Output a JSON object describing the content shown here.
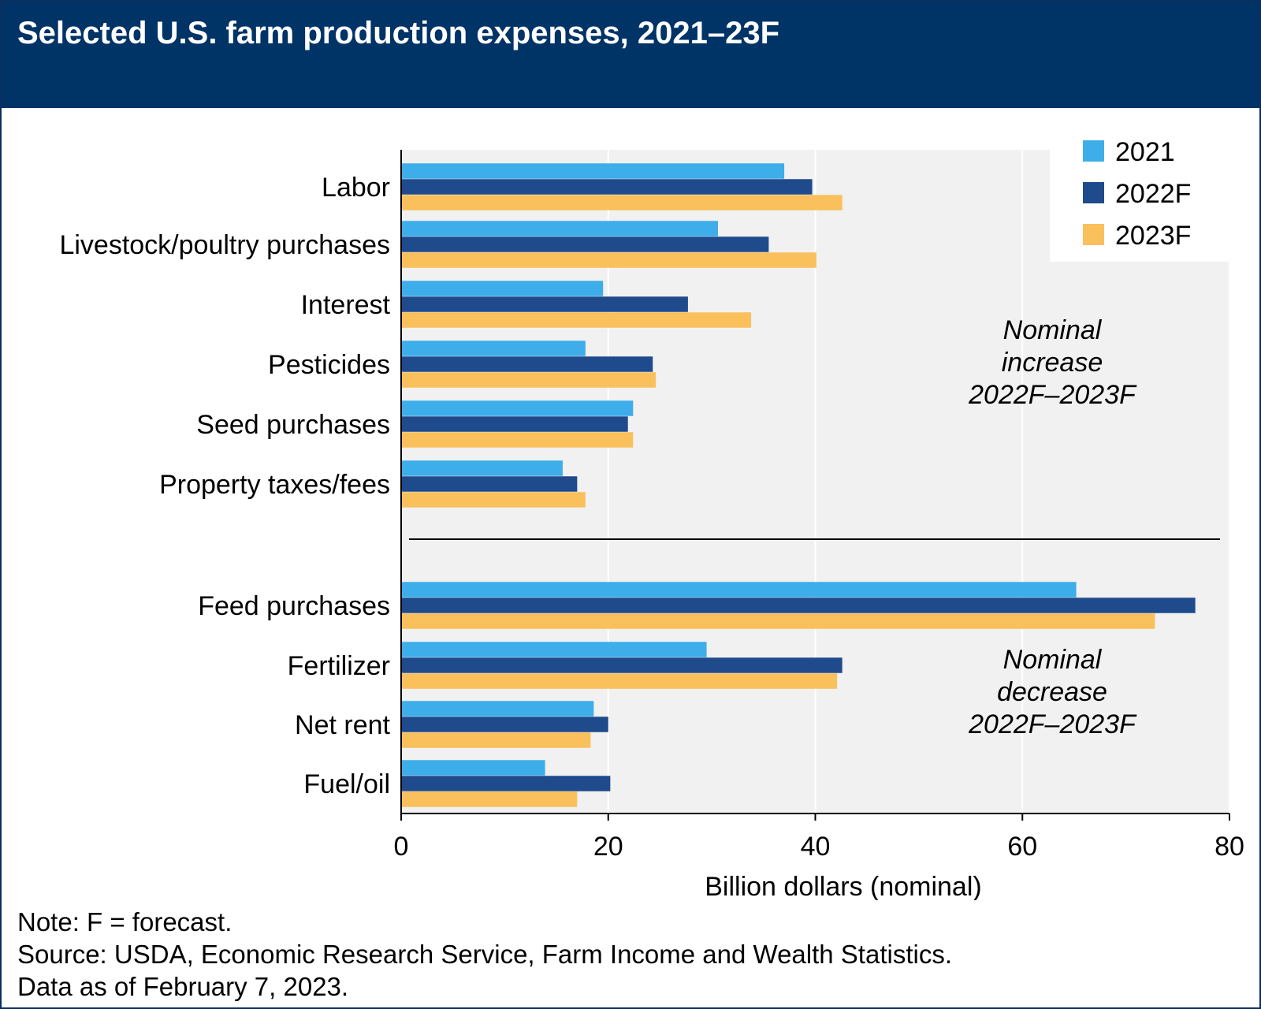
{
  "title": "Selected U.S. farm production expenses, 2021–23F",
  "colors": {
    "header_bg": "#003366",
    "series_2021": "#3daee9",
    "series_2022F": "#1f4a8c",
    "series_2023F": "#f9c05c",
    "plot_bg": "#f1f1f1"
  },
  "chart_data": {
    "type": "bar",
    "orientation": "horizontal",
    "categories": [
      "Labor",
      "Livestock/poultry purchases",
      "Interest",
      "Pesticides",
      "Seed purchases",
      "Property taxes/fees",
      "Feed purchases",
      "Fertilizer",
      "Net rent",
      "Fuel/oil"
    ],
    "series": [
      {
        "name": "2021",
        "values": [
          37.0,
          30.6,
          19.5,
          17.8,
          22.4,
          15.6,
          65.2,
          29.5,
          18.6,
          13.9
        ]
      },
      {
        "name": "2022F",
        "values": [
          39.7,
          35.5,
          27.7,
          24.3,
          21.9,
          17.0,
          76.7,
          42.6,
          20.0,
          20.2
        ]
      },
      {
        "name": "2023F",
        "values": [
          42.6,
          40.1,
          33.8,
          24.6,
          22.4,
          17.8,
          72.8,
          42.1,
          18.3,
          17.0
        ]
      }
    ],
    "groups": [
      {
        "label": "Nominal increase 2022F–2023F",
        "lines": [
          "Nominal",
          "increase",
          "2022F–2023F"
        ],
        "categories": [
          "Labor",
          "Livestock/poultry purchases",
          "Interest",
          "Pesticides",
          "Seed purchases",
          "Property taxes/fees"
        ]
      },
      {
        "label": "Nominal decrease 2022F–2023F",
        "lines": [
          "Nominal",
          "decrease",
          "2022F–2023F"
        ],
        "categories": [
          "Feed purchases",
          "Fertilizer",
          "Net rent",
          "Fuel/oil"
        ]
      }
    ],
    "xlabel": "Billion dollars (nominal)",
    "xlim": [
      0,
      80
    ],
    "xticks": [
      0,
      20,
      40,
      60,
      80
    ],
    "grid": true,
    "legend": "top-right"
  },
  "notes": [
    "Note: F = forecast.",
    "Source: USDA, Economic Research Service, Farm Income and Wealth Statistics.",
    "Data as of February 7, 2023."
  ]
}
